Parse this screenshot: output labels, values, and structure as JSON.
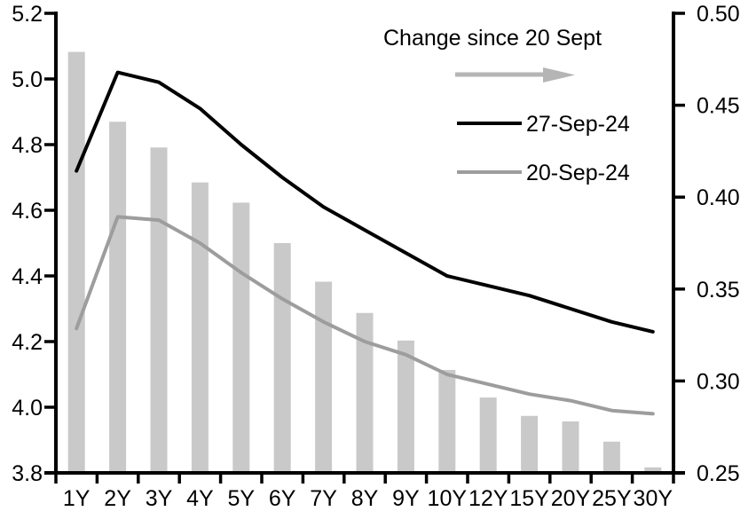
{
  "chart_data": {
    "type": "combo-bar-line",
    "title": "",
    "categories": [
      "1Y",
      "2Y",
      "3Y",
      "4Y",
      "5Y",
      "6Y",
      "7Y",
      "8Y",
      "9Y",
      "10Y",
      "12Y",
      "15Y",
      "20Y",
      "25Y",
      "30Y"
    ],
    "series": [
      {
        "id": "change",
        "name": "Change since 20 Sept",
        "type": "bar",
        "axis": "right",
        "values": [
          0.479,
          0.441,
          0.427,
          0.408,
          0.397,
          0.375,
          0.354,
          0.337,
          0.322,
          0.306,
          0.291,
          0.281,
          0.278,
          0.267,
          0.253
        ]
      },
      {
        "id": "sep27",
        "name": "27-Sep-24",
        "type": "line",
        "axis": "left",
        "values": [
          4.72,
          5.02,
          4.99,
          4.91,
          4.8,
          4.7,
          4.61,
          4.54,
          4.47,
          4.4,
          4.37,
          4.34,
          4.3,
          4.26,
          4.23
        ]
      },
      {
        "id": "sep20",
        "name": "20-Sep-24",
        "type": "line",
        "axis": "left",
        "values": [
          4.24,
          4.58,
          4.57,
          4.5,
          4.41,
          4.33,
          4.26,
          4.2,
          4.16,
          4.1,
          4.07,
          4.04,
          4.02,
          3.99,
          3.98
        ]
      }
    ],
    "left_axis": {
      "min": 3.8,
      "max": 5.2,
      "tick_values": [
        3.8,
        4.0,
        4.2,
        4.4,
        4.6,
        4.8,
        5.0,
        5.2
      ],
      "tick_labels": [
        "3.8",
        "4.0",
        "4.2",
        "4.4",
        "4.6",
        "4.8",
        "5.0",
        "5.2"
      ]
    },
    "right_axis": {
      "min": 0.25,
      "max": 0.5,
      "tick_values": [
        0.25,
        0.3,
        0.35,
        0.4,
        0.45,
        0.5
      ],
      "tick_labels": [
        "0.25",
        "0.30",
        "0.35",
        "0.40",
        "0.45",
        "0.50"
      ]
    },
    "legend": {
      "bar_label": "Change since 20 Sept",
      "line1_label": "27-Sep-24",
      "line2_label": "20-Sep-24",
      "position": "top-center-inside"
    },
    "colors": {
      "bar": "#c9c9c9",
      "line_27sep": "#000000",
      "line_20sep": "#9d9d9d",
      "arrow": "#b5b5b5",
      "axis": "#000000",
      "text": "#000000",
      "background": "#ffffff"
    },
    "grid": false
  }
}
